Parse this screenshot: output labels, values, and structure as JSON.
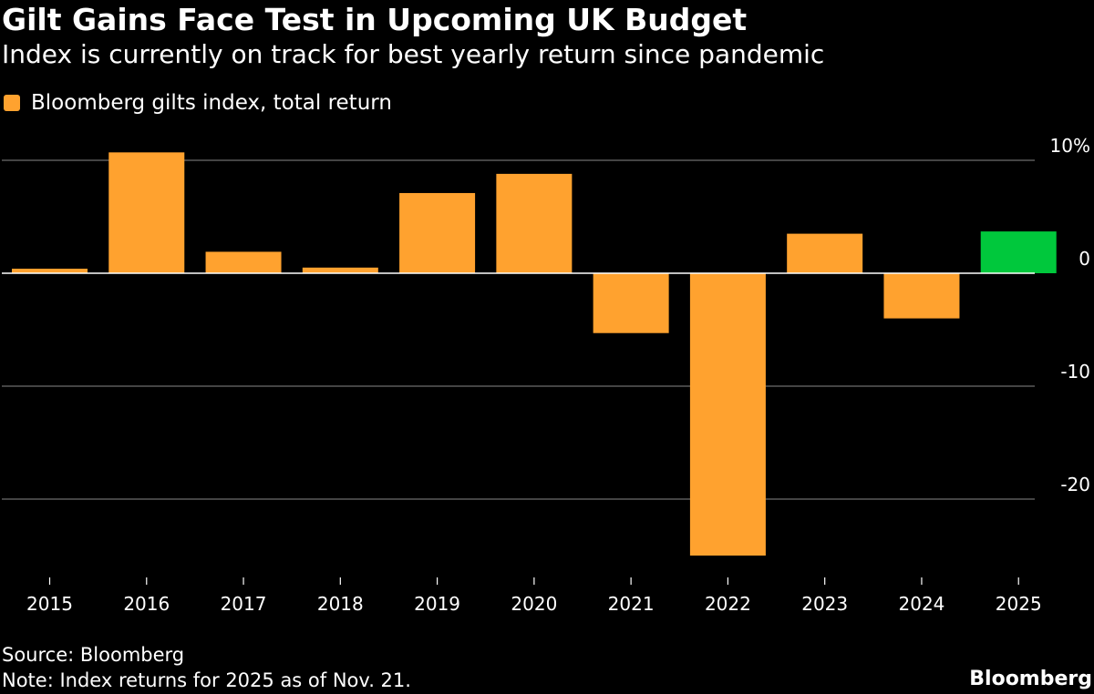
{
  "title": "Gilt Gains Face Test in Upcoming UK Budget",
  "subtitle": "Index is currently on track for best yearly return since pandemic",
  "legend": {
    "label": "Bloomberg gilts index, total return",
    "color": "#ffa22f"
  },
  "colors": {
    "bar": "#ffa22f",
    "highlight": "#00c83c",
    "gridline": "#6e6e6e",
    "background": "#000000",
    "text": "#ffffff"
  },
  "chart_data": {
    "type": "bar",
    "title": "Gilt Gains Face Test in Upcoming UK Budget",
    "xlabel": "",
    "ylabel": "",
    "categories": [
      "2015",
      "2016",
      "2017",
      "2018",
      "2019",
      "2020",
      "2021",
      "2022",
      "2023",
      "2024",
      "2025"
    ],
    "series": [
      {
        "name": "Bloomberg gilts index, total return",
        "values": [
          0.4,
          10.7,
          1.9,
          0.5,
          7.1,
          8.8,
          -5.3,
          -25.0,
          3.5,
          -4.0,
          3.7
        ]
      }
    ],
    "highlight_index": 10,
    "ylim": [
      -26,
      11
    ],
    "yticks": [
      10,
      0,
      -10,
      -20
    ],
    "ytick_labels": [
      "10%",
      "0",
      "-10",
      "-20"
    ],
    "grid": true
  },
  "footer": {
    "source": "Source: Bloomberg",
    "note": "Note: Index returns for 2025 as of Nov. 21.",
    "brand": "Bloomberg"
  }
}
